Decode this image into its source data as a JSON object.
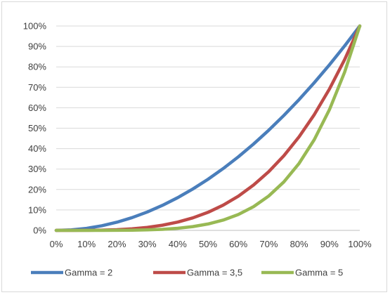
{
  "chart_data": {
    "type": "line",
    "title": "",
    "xlabel": "",
    "ylabel": "",
    "x": [
      0,
      0.05,
      0.1,
      0.15,
      0.2,
      0.25,
      0.3,
      0.35,
      0.4,
      0.45,
      0.5,
      0.55,
      0.6,
      0.65,
      0.7,
      0.75,
      0.8,
      0.85,
      0.9,
      0.95,
      1.0
    ],
    "xlim": [
      0,
      1
    ],
    "ylim": [
      0,
      1
    ],
    "x_ticks": [
      "0%",
      "10%",
      "20%",
      "30%",
      "40%",
      "50%",
      "60%",
      "70%",
      "80%",
      "90%",
      "100%"
    ],
    "y_ticks": [
      "0%",
      "10%",
      "20%",
      "30%",
      "40%",
      "50%",
      "60%",
      "70%",
      "80%",
      "90%",
      "100%"
    ],
    "grid": "horizontal",
    "legend_position": "bottom",
    "series": [
      {
        "name": "Gamma = 2",
        "color": "#4a7ebb",
        "values": [
          0,
          0.0025,
          0.01,
          0.0225,
          0.04,
          0.0625,
          0.09,
          0.1225,
          0.16,
          0.2025,
          0.25,
          0.3025,
          0.36,
          0.4225,
          0.49,
          0.5625,
          0.64,
          0.7225,
          0.81,
          0.9025,
          1.0
        ]
      },
      {
        "name": "Gamma = 3,5",
        "color": "#be4b48",
        "values": [
          0,
          3e-05,
          0.0003,
          0.0013,
          0.0036,
          0.0078,
          0.0148,
          0.0253,
          0.0405,
          0.0612,
          0.0884,
          0.1234,
          0.1673,
          0.2217,
          0.2871,
          0.3654,
          0.4579,
          0.566,
          0.6915,
          0.8355,
          1.0
        ]
      },
      {
        "name": "Gamma = 5",
        "color": "#98b954",
        "values": [
          0,
          3e-07,
          1e-05,
          8e-05,
          0.0003,
          0.001,
          0.0024,
          0.0053,
          0.0102,
          0.0185,
          0.0313,
          0.0503,
          0.0778,
          0.116,
          0.1681,
          0.2373,
          0.3277,
          0.4437,
          0.5905,
          0.7738,
          1.0
        ]
      }
    ]
  }
}
